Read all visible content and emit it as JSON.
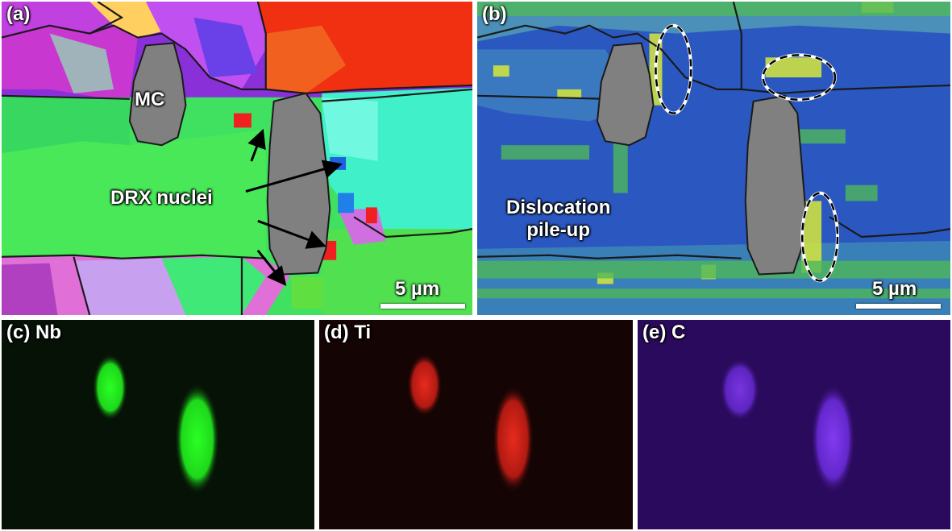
{
  "panels": {
    "a": {
      "label": "(a)",
      "annotations": {
        "mc": "MC",
        "drx": "DRX nuclei"
      },
      "scale": "5 µm",
      "grain_boundary_color": "#1a1a1a",
      "particle_color": "#808080"
    },
    "b": {
      "label": "(b)",
      "annotations": {
        "pileup": "Dislocation\npile-up"
      },
      "scale": "5 µm",
      "background_color": "#2b5bc0",
      "highlight_colors": [
        "#4fb85a",
        "#d7e83a"
      ]
    },
    "c": {
      "label": "(c) Nb",
      "color": "#22e01e"
    },
    "d": {
      "label": "(d)  Ti",
      "color": "#d42318"
    },
    "e": {
      "label": "(e)  C",
      "color": "#7a33e6"
    }
  }
}
